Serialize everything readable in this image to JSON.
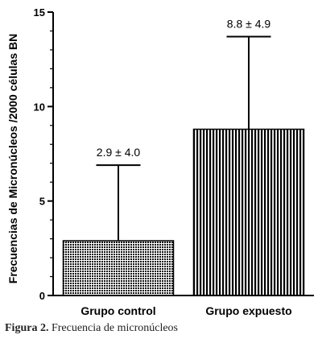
{
  "chart_data": {
    "type": "bar",
    "categories": [
      "Grupo control",
      "Grupo expuesto"
    ],
    "values": [
      2.9,
      8.8
    ],
    "error": [
      4.0,
      4.9
    ],
    "data_labels": [
      "2.9 ± 4.0",
      "8.8 ± 4.9"
    ],
    "ylabel": "Frecuencias  de Micronúcleos /2000 células BN",
    "xlabel": "",
    "ylim": [
      0,
      15
    ],
    "yticks": [
      0,
      5,
      10,
      15
    ],
    "grid": false,
    "patterns": [
      "crosshatch",
      "vertical-stripes"
    ]
  },
  "caption": {
    "figure_label": "Figura 2.",
    "text": " Frecuencia de micronúcleos"
  }
}
